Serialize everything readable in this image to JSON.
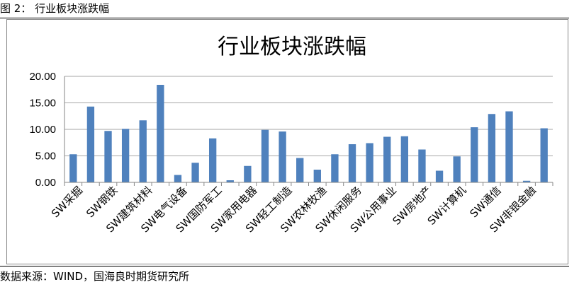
{
  "figure_caption": "图 2：   行业板块涨跌幅",
  "source_note": "数据来源：WIND，国海良时期货研究所",
  "colors": {
    "bar": "#4F81BD",
    "grid": "#A6A6A6",
    "axis": "#868686"
  },
  "chart_data": {
    "type": "bar",
    "title": "行业板块涨跌幅",
    "xlabel": "",
    "ylabel": "",
    "ylim": [
      0,
      20
    ],
    "yticks": [
      "0.00",
      "5.00",
      "10.00",
      "15.00",
      "20.00"
    ],
    "grid": true,
    "legend": "none",
    "x_tick_labels": [
      "SW采掘",
      "SW钢铁",
      "SW建筑材料",
      "SW电气设备",
      "SW国防军工",
      "SW家用电器",
      "SW轻工制造",
      "SW农林牧渔",
      "SW休闲服务",
      "SW公用事业",
      "SW房地产",
      "SW计算机",
      "SW通信",
      "SW非银金融"
    ],
    "values": [
      5.3,
      14.3,
      9.7,
      10.1,
      11.7,
      18.4,
      1.4,
      3.7,
      8.3,
      0.4,
      3.1,
      9.9,
      9.6,
      4.6,
      2.4,
      5.3,
      7.2,
      7.4,
      8.6,
      8.7,
      6.2,
      2.2,
      4.9,
      10.4,
      12.9,
      13.4,
      0.3,
      10.2
    ]
  }
}
